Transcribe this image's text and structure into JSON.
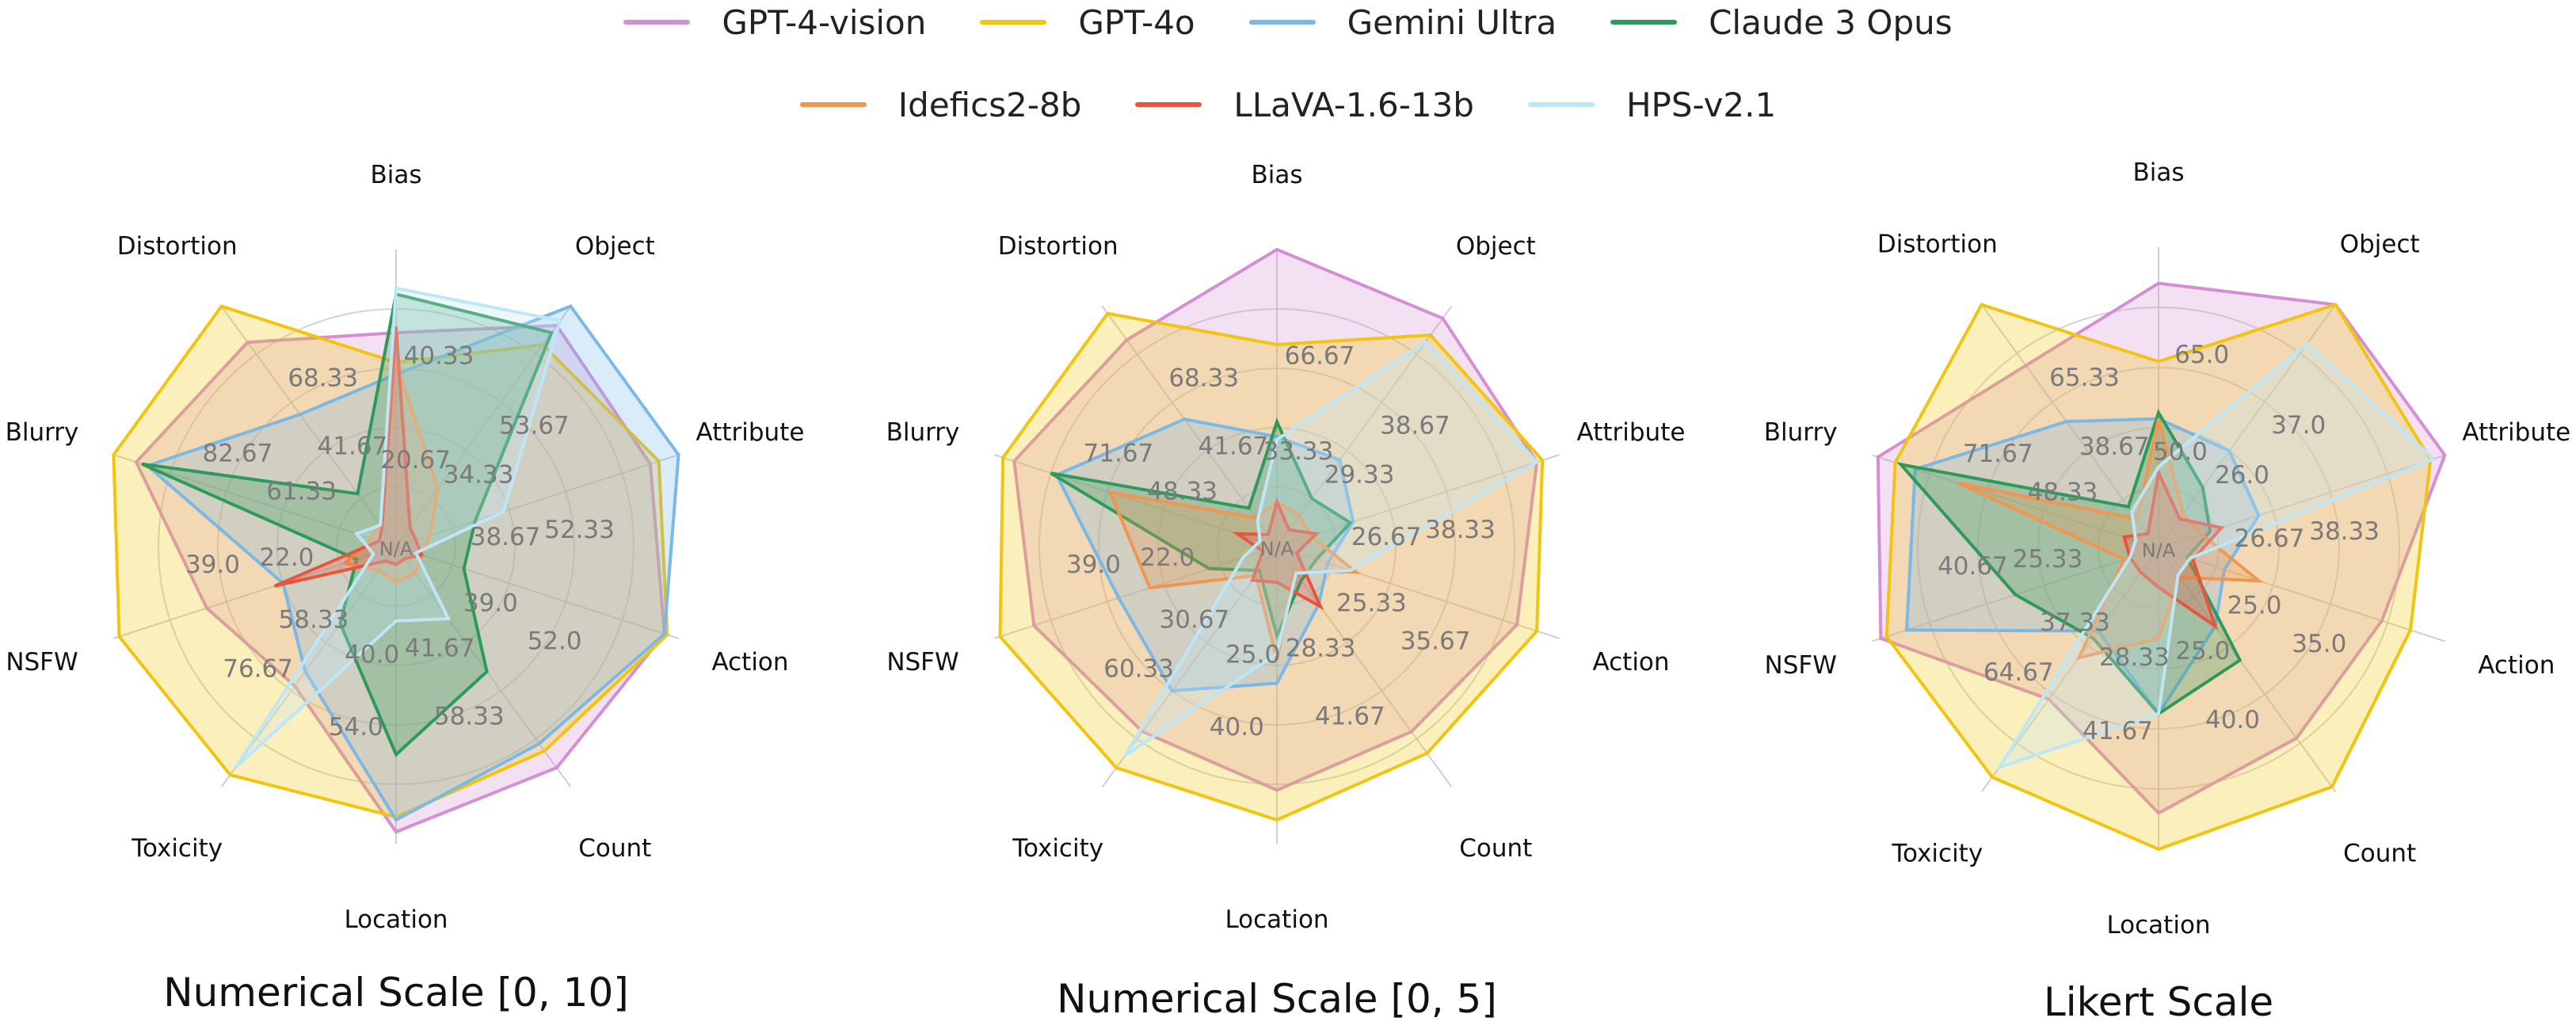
{
  "legend": {
    "rows": [
      [
        {
          "name": "GPT-4-vision",
          "color": "#d48fd4"
        },
        {
          "name": "GPT-4o",
          "color": "#f2c40f"
        },
        {
          "name": "Gemini Ultra",
          "color": "#7ab8e8"
        },
        {
          "name": "Claude 3 Opus",
          "color": "#2e9a5a"
        }
      ],
      [
        {
          "name": "Idefics2-8b",
          "color": "#f0964e"
        },
        {
          "name": "LLaVA-1.6-13b",
          "color": "#e8553e"
        },
        {
          "name": "HPS-v2.1",
          "color": "#bde6f7"
        }
      ]
    ]
  },
  "chart_data": [
    {
      "type": "radar",
      "title": "Numerical Scale [0, 10]",
      "categories": [
        "Bias",
        "Object",
        "Attribute",
        "Action",
        "Count",
        "Location",
        "Toxicity",
        "NSFW",
        "Blurry",
        "Distortion"
      ],
      "rmax": 100,
      "grid": true,
      "series": [
        {
          "name": "GPT-4-vision",
          "color": "#d48fd4",
          "values": [
            72,
            92,
            90,
            95,
            92,
            96,
            58,
            67,
            92,
            85
          ]
        },
        {
          "name": "GPT-4o",
          "color": "#f2c40f",
          "values": [
            62,
            84,
            93,
            96,
            85,
            91,
            95,
            98,
            100,
            100
          ]
        },
        {
          "name": "Gemini Ultra",
          "color": "#7ab8e8",
          "values": [
            58,
            100,
            100,
            95,
            82,
            92,
            52,
            40,
            88,
            55
          ]
        },
        {
          "name": "Claude 3 Opus",
          "color": "#2e9a5a",
          "values": [
            85,
            89,
            28,
            24,
            52,
            70,
            32,
            14,
            90,
            22
          ]
        },
        {
          "name": "Idefics2-8b",
          "color": "#f0964e",
          "values": [
            62,
            24,
            12,
            9,
            11,
            12,
            10,
            18,
            9,
            9
          ]
        },
        {
          "name": "LLaVA-1.6-13b",
          "color": "#e8553e",
          "values": [
            74,
            8,
            7,
            9,
            5,
            6,
            6,
            43,
            6,
            8
          ]
        },
        {
          "name": "HPS-v2.1",
          "color": "#bde6f7",
          "values": [
            87,
            94,
            38,
            7,
            30,
            25,
            92,
            8,
            14,
            9
          ]
        }
      ],
      "value_labels": [
        {
          "text": "40.33",
          "axis": 0,
          "r": 66
        },
        {
          "text": "20.67",
          "axis": 0,
          "r": 30
        },
        {
          "text": "53.67",
          "axis": 1,
          "r": 62
        },
        {
          "text": "34.33",
          "axis": 1,
          "r": 37
        },
        {
          "text": "52.33",
          "axis": 2,
          "r": 62
        },
        {
          "text": "38.67",
          "axis": 2,
          "r": 37
        },
        {
          "text": "52.0",
          "axis": 3,
          "r": 62
        },
        {
          "text": "39.0",
          "axis": 3,
          "r": 37
        },
        {
          "text": "58.33",
          "axis": 4,
          "r": 62
        },
        {
          "text": "41.67",
          "axis": 4,
          "r": 37
        },
        {
          "text": "54.0",
          "axis": 5,
          "r": 62
        },
        {
          "text": "40.0",
          "axis": 5,
          "r": 37
        },
        {
          "text": "76.67",
          "axis": 6,
          "r": 62
        },
        {
          "text": "58.33",
          "axis": 6,
          "r": 37
        },
        {
          "text": "39.0",
          "axis": 7,
          "r": 62
        },
        {
          "text": "22.0",
          "axis": 7,
          "r": 37
        },
        {
          "text": "82.67",
          "axis": 8,
          "r": 62
        },
        {
          "text": "61.33",
          "axis": 8,
          "r": 37
        },
        {
          "text": "68.33",
          "axis": 9,
          "r": 62
        },
        {
          "text": "41.67",
          "axis": 9,
          "r": 37
        },
        {
          "text": "N/A",
          "axis": 0,
          "r": 0
        }
      ]
    },
    {
      "type": "radar",
      "title": "Numerical Scale [0, 5]",
      "categories": [
        "Bias",
        "Object",
        "Attribute",
        "Action",
        "Count",
        "Location",
        "Toxicity",
        "NSFW",
        "Blurry",
        "Distortion"
      ],
      "rmax": 100,
      "grid": true,
      "series": [
        {
          "name": "GPT-4-vision",
          "color": "#d48fd4",
          "values": [
            100,
            95,
            92,
            85,
            77,
            82,
            77,
            86,
            93,
            86
          ]
        },
        {
          "name": "GPT-4o",
          "color": "#f2c40f",
          "values": [
            68,
            88,
            94,
            92,
            86,
            92,
            92,
            98,
            97,
            97
          ]
        },
        {
          "name": "Gemini Ultra",
          "color": "#7ab8e8",
          "values": [
            37,
            36,
            27,
            18,
            24,
            46,
            60,
            56,
            78,
            53
          ]
        },
        {
          "name": "Claude 3 Opus",
          "color": "#2e9a5a",
          "values": [
            42,
            20,
            26,
            14,
            14,
            30,
            10,
            24,
            80,
            16
          ]
        },
        {
          "name": "Idefics2-8b",
          "color": "#f0964e",
          "values": [
            15,
            13,
            12,
            28,
            10,
            38,
            12,
            45,
            59,
            12
          ]
        },
        {
          "name": "LLaVA-1.6-13b",
          "color": "#e8553e",
          "values": [
            15,
            7,
            14,
            7,
            25,
            12,
            14,
            5,
            14,
            5
          ]
        },
        {
          "name": "HPS-v2.1",
          "color": "#bde6f7",
          "values": [
            36,
            85,
            92,
            26,
            11,
            36,
            87,
            12,
            6,
            11
          ]
        }
      ],
      "value_labels": [
        {
          "text": "66.67",
          "axis": 0,
          "r": 66
        },
        {
          "text": "33.33",
          "axis": 0,
          "r": 33
        },
        {
          "text": "38.67",
          "axis": 1,
          "r": 62
        },
        {
          "text": "29.33",
          "axis": 1,
          "r": 37
        },
        {
          "text": "38.33",
          "axis": 2,
          "r": 62
        },
        {
          "text": "26.67",
          "axis": 2,
          "r": 37
        },
        {
          "text": "35.67",
          "axis": 3,
          "r": 62
        },
        {
          "text": "25.33",
          "axis": 3,
          "r": 37
        },
        {
          "text": "41.67",
          "axis": 4,
          "r": 62
        },
        {
          "text": "28.33",
          "axis": 4,
          "r": 37
        },
        {
          "text": "40.0",
          "axis": 5,
          "r": 62
        },
        {
          "text": "25.0",
          "axis": 5,
          "r": 37
        },
        {
          "text": "60.33",
          "axis": 6,
          "r": 62
        },
        {
          "text": "30.67",
          "axis": 6,
          "r": 37
        },
        {
          "text": "39.0",
          "axis": 7,
          "r": 62
        },
        {
          "text": "22.0",
          "axis": 7,
          "r": 37
        },
        {
          "text": "71.67",
          "axis": 8,
          "r": 62
        },
        {
          "text": "48.33",
          "axis": 8,
          "r": 37
        },
        {
          "text": "68.33",
          "axis": 9,
          "r": 62
        },
        {
          "text": "41.67",
          "axis": 9,
          "r": 37
        },
        {
          "text": "N/A",
          "axis": 0,
          "r": 0
        }
      ]
    },
    {
      "type": "radar",
      "title": "Likert Scale",
      "categories": [
        "Bias",
        "Object",
        "Attribute",
        "Action",
        "Count",
        "Location",
        "Toxicity",
        "NSFW",
        "Blurry",
        "Distortion"
      ],
      "rmax": 100,
      "grid": true,
      "series": [
        {
          "name": "GPT-4-vision",
          "color": "#d48fd4",
          "values": [
            88,
            100,
            100,
            78,
            78,
            88,
            62,
            97,
            98,
            75
          ]
        },
        {
          "name": "GPT-4o",
          "color": "#f2c40f",
          "values": [
            62,
            100,
            95,
            88,
            98,
            100,
            94,
            95,
            92,
            100
          ]
        },
        {
          "name": "Gemini Ultra",
          "color": "#7ab8e8",
          "values": [
            43,
            40,
            35,
            23,
            32,
            55,
            34,
            88,
            85,
            52
          ]
        },
        {
          "name": "Claude 3 Opus",
          "color": "#2e9a5a",
          "values": [
            45,
            25,
            18,
            10,
            46,
            55,
            37,
            50,
            90,
            17
          ]
        },
        {
          "name": "Idefics2-8b",
          "color": "#f0964e",
          "values": [
            43,
            14,
            15,
            35,
            12,
            30,
            45,
            12,
            70,
            12
          ]
        },
        {
          "name": "LLaVA-1.6-13b",
          "color": "#e8553e",
          "values": [
            25,
            12,
            22,
            12,
            32,
            13,
            10,
            10,
            12,
            6
          ]
        },
        {
          "name": "HPS-v2.1",
          "color": "#bde6f7",
          "values": [
            27,
            84,
            96,
            11,
            11,
            55,
            90,
            10,
            8,
            15
          ]
        }
      ],
      "value_labels": [
        {
          "text": "65.0",
          "axis": 0,
          "r": 66
        },
        {
          "text": "50.0",
          "axis": 0,
          "r": 33
        },
        {
          "text": "37.0",
          "axis": 1,
          "r": 62
        },
        {
          "text": "26.0",
          "axis": 1,
          "r": 37
        },
        {
          "text": "38.33",
          "axis": 2,
          "r": 62
        },
        {
          "text": "26.67",
          "axis": 2,
          "r": 37
        },
        {
          "text": "35.0",
          "axis": 3,
          "r": 62
        },
        {
          "text": "25.0",
          "axis": 3,
          "r": 37
        },
        {
          "text": "40.0",
          "axis": 4,
          "r": 62
        },
        {
          "text": "25.0",
          "axis": 4,
          "r": 37
        },
        {
          "text": "41.67",
          "axis": 5,
          "r": 62
        },
        {
          "text": "28.33",
          "axis": 5,
          "r": 37
        },
        {
          "text": "64.67",
          "axis": 6,
          "r": 62
        },
        {
          "text": "37.33",
          "axis": 6,
          "r": 37
        },
        {
          "text": "40.67",
          "axis": 7,
          "r": 62
        },
        {
          "text": "25.33",
          "axis": 7,
          "r": 37
        },
        {
          "text": "71.67",
          "axis": 8,
          "r": 62
        },
        {
          "text": "48.33",
          "axis": 8,
          "r": 37
        },
        {
          "text": "65.33",
          "axis": 9,
          "r": 62
        },
        {
          "text": "38.67",
          "axis": 9,
          "r": 37
        },
        {
          "text": "N/A",
          "axis": 0,
          "r": 0
        }
      ]
    }
  ]
}
